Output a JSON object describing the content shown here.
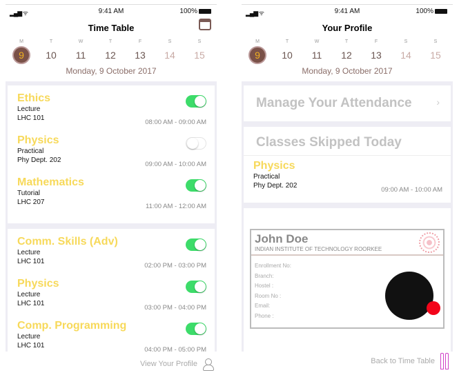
{
  "status": {
    "time": "9:41 AM",
    "battery": "100%"
  },
  "week": {
    "letters": [
      "M",
      "T",
      "W",
      "T",
      "F",
      "S",
      "S"
    ],
    "numbers": [
      "9",
      "10",
      "11",
      "12",
      "13",
      "14",
      "15"
    ],
    "selected": 0,
    "date": "Monday, 9 October 2017"
  },
  "timetable": {
    "title": "Time Table",
    "icon": "calendar-icon",
    "cards": [
      [
        {
          "name": "Ethics",
          "type": "Lecture",
          "room": "LHC 101",
          "time": "08:00 AM - 09:00 AM",
          "on": true
        },
        {
          "name": "Physics",
          "type": "Practical",
          "room": "Phy Dept. 202",
          "time": "09:00 AM - 10:00 AM",
          "on": false
        },
        {
          "name": "Mathematics",
          "type": "Tutorial",
          "room": "LHC 207",
          "time": "11:00 AM - 12:00 AM",
          "on": true
        }
      ],
      [
        {
          "name": "Comm. Skills (Adv)",
          "type": "Lecture",
          "room": "LHC 101",
          "time": "02:00 PM - 03:00 PM",
          "on": true
        },
        {
          "name": "Physics",
          "type": "Lecture",
          "room": "LHC 101",
          "time": "03:00 PM - 04:00 PM",
          "on": true
        },
        {
          "name": "Comp. Programming",
          "type": "Lecture",
          "room": "LHC 101",
          "time": "04:00 PM - 05:00 PM",
          "on": true
        }
      ]
    ],
    "footer": "View Your Profile"
  },
  "profile": {
    "title": "Your Profile",
    "manage": "Manage Your Attendance",
    "skipped": "Classes Skipped Today",
    "skipped_class": {
      "name": "Physics",
      "type": "Practical",
      "room": "Phy Dept. 202",
      "time": "09:00 AM - 10:00 AM"
    },
    "id": {
      "name": "John Doe",
      "institute": "INDIAN INSTITUTE OF TECHNOLOGY ROORKEE",
      "fields": [
        "Enrollment No:",
        "Branch:",
        "Hostel :",
        "Room No :",
        "Email:",
        "Phone :"
      ]
    },
    "footer": "Back to Time Table"
  },
  "colors": {
    "accent": "#7a5148",
    "class_title": "#f7d95a",
    "toggle_on": "#3ddc6a"
  }
}
